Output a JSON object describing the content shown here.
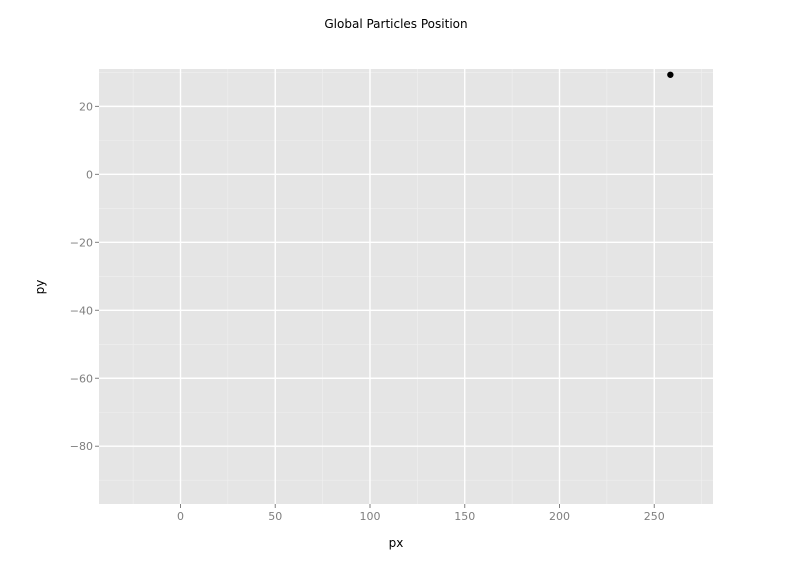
{
  "chart_data": {
    "type": "scatter",
    "title": "Global Particles Position",
    "xlabel": "px",
    "ylabel": "py",
    "xlim": [
      -43,
      281
    ],
    "ylim": [
      -97,
      31
    ],
    "x_ticks": [
      0,
      50,
      100,
      150,
      200,
      250
    ],
    "y_ticks": [
      20,
      0,
      -20,
      -40,
      -60,
      -80
    ],
    "x_tick_labels": [
      "0",
      "50",
      "100",
      "150",
      "200",
      "250"
    ],
    "y_tick_labels": [
      "20",
      "0",
      "−20",
      "−40",
      "−60",
      "−80"
    ],
    "grid": true,
    "series": [
      {
        "points": [
          {
            "x": 258.5,
            "y": 29.3
          }
        ]
      }
    ],
    "colors": {
      "panel": "#e5e5e5",
      "point": "#000000",
      "tick_text": "#7f7f7f"
    }
  }
}
